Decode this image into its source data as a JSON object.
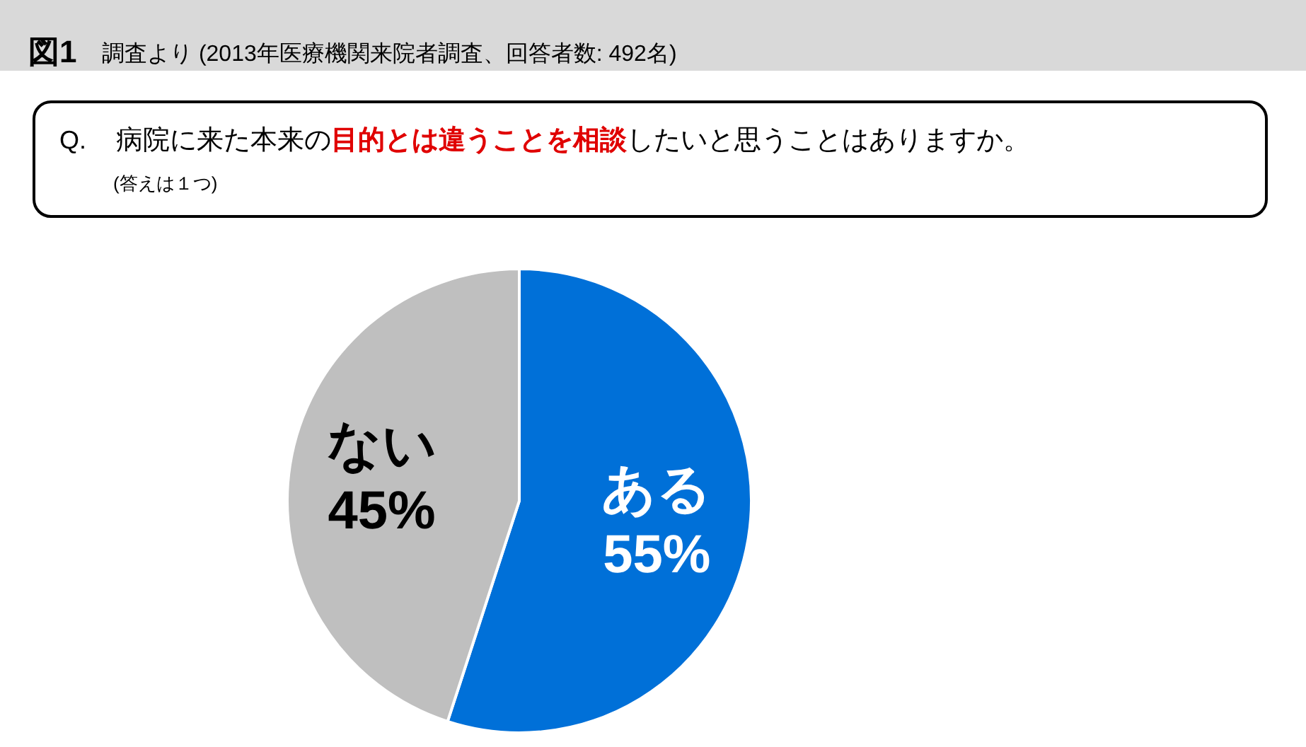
{
  "chart_data": {
    "type": "pie",
    "title": "図1",
    "subtitle": "調査より (2013年医療機関来院者調査、回答者数: 492名)",
    "annotations": [
      "Q.",
      "病院に来た本来の",
      "目的とは違うことを相談",
      "したいと思うことはありますか。",
      "(答えは１つ)"
    ],
    "categories": [
      "ある",
      "ない"
    ],
    "values": [
      55,
      45
    ],
    "colors": [
      "#0070d8",
      "#bfbfbf"
    ],
    "value_labels": [
      "55%",
      "45%"
    ]
  }
}
